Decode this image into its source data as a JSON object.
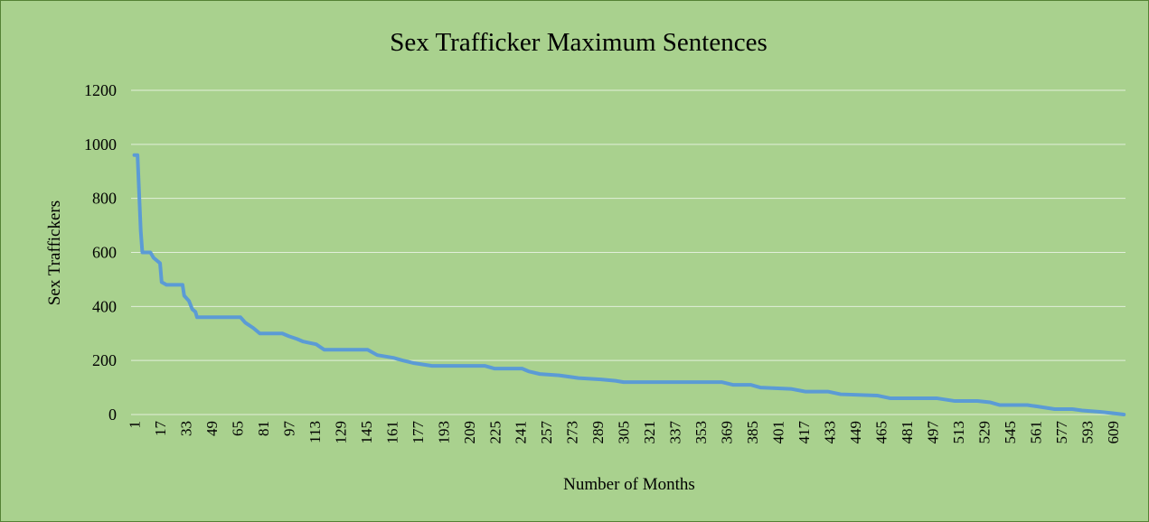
{
  "chart_data": {
    "type": "line",
    "title": "Sex Trafficker Maximum Sentences",
    "x_label": "Number of Months",
    "y_label": "Sex Traffickers",
    "x": [
      1,
      3,
      5,
      6,
      11,
      13,
      17,
      18,
      21,
      31,
      32,
      35,
      37,
      39,
      40,
      67,
      70,
      75,
      79,
      93,
      97,
      102,
      106,
      114,
      119,
      146,
      152,
      162,
      168,
      175,
      186,
      219,
      225,
      242,
      246,
      253,
      265,
      277,
      291,
      300,
      305,
      366,
      373,
      384,
      390,
      409,
      418,
      432,
      440,
      463,
      471,
      500,
      511,
      525,
      533,
      539,
      556,
      562,
      573,
      584,
      590,
      601,
      609,
      616
    ],
    "values": [
      960,
      960,
      680,
      600,
      600,
      580,
      560,
      490,
      480,
      480,
      440,
      420,
      390,
      380,
      360,
      360,
      340,
      320,
      300,
      300,
      290,
      280,
      270,
      260,
      240,
      240,
      220,
      210,
      200,
      190,
      180,
      180,
      170,
      170,
      160,
      150,
      145,
      135,
      130,
      125,
      120,
      120,
      110,
      110,
      100,
      95,
      85,
      85,
      75,
      70,
      60,
      60,
      50,
      50,
      45,
      35,
      35,
      30,
      20,
      20,
      15,
      10,
      5,
      0
    ],
    "color": "#5b9bd5",
    "xlim": [
      -1,
      617
    ],
    "xticks": [
      1,
      17,
      33,
      49,
      65,
      81,
      97,
      113,
      129,
      145,
      161,
      177,
      193,
      209,
      225,
      241,
      257,
      273,
      289,
      305,
      321,
      337,
      353,
      369,
      385,
      401,
      417,
      433,
      449,
      465,
      481,
      497,
      513,
      529,
      545,
      561,
      577,
      593,
      609
    ],
    "ylim": [
      0,
      1200
    ],
    "yticks": [
      0,
      200,
      400,
      600,
      800,
      1000,
      1200
    ],
    "grid": true
  }
}
